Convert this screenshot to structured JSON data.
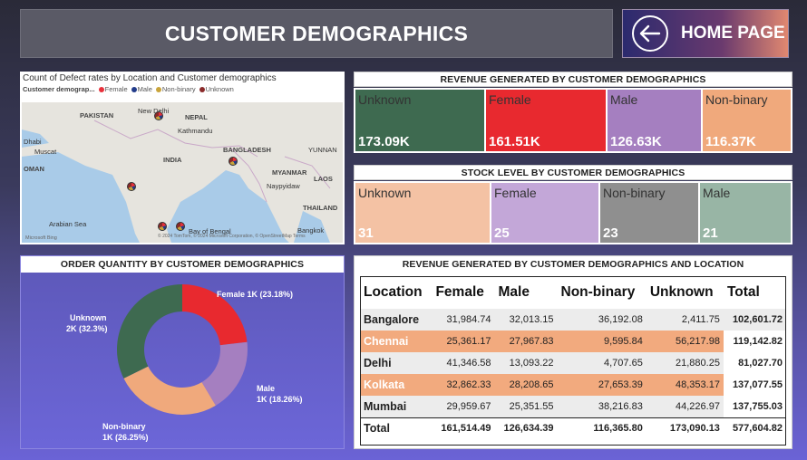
{
  "header": {
    "title": "CUSTOMER DEMOGRAPHICS",
    "home_label": "HOME PAGE"
  },
  "map": {
    "title": "Count of Defect rates by Location and Customer demographics",
    "legend_title": "Customer demograp...",
    "legend": [
      {
        "name": "Female",
        "color": "#e8303a"
      },
      {
        "name": "Male",
        "color": "#223b8a"
      },
      {
        "name": "Non-binary",
        "color": "#c9a43a"
      },
      {
        "name": "Unknown",
        "color": "#8a2a2a"
      }
    ],
    "places": {
      "pakistan": "PAKISTAN",
      "new_delhi": "New Delhi",
      "nepal": "NEPAL",
      "kathmandu": "Kathmandu",
      "dhabi": "Dhabi",
      "muscat": "Muscat",
      "oman": "OMAN",
      "india": "INDIA",
      "bangladesh": "BANGLADESH",
      "yunnan": "YUNNAN",
      "myanmar": "MYANMAR",
      "naypyidaw": "Naypyidaw",
      "laos": "LAOS",
      "thailand": "THAILAND",
      "arabian_sea": "Arabian Sea",
      "bay_of_bengal": "Bay of Bengal",
      "bangkok": "Bangkok"
    },
    "footer": "Microsoft Bing",
    "copyright": "© 2024 TomTom, © 2024 Microsoft Corporation, © OpenStreetMap Terms"
  },
  "revenue": {
    "title": "REVENUE GENERATED BY CUSTOMER DEMOGRAPHICS",
    "tiles": [
      {
        "name": "Unknown",
        "value": "173.09K",
        "color": "#3e6a50"
      },
      {
        "name": "Female",
        "value": "161.51K",
        "color": "#e8292f"
      },
      {
        "name": "Male",
        "value": "126.63K",
        "color": "#a57fc0"
      },
      {
        "name": "Non-binary",
        "value": "116.37K",
        "color": "#f0a97c"
      }
    ]
  },
  "stock": {
    "title": "STOCK LEVEL BY CUSTOMER DEMOGRAPHICS",
    "tiles": [
      {
        "name": "Unknown",
        "value": "31",
        "color": "#f4c2a4"
      },
      {
        "name": "Female",
        "value": "25",
        "color": "#c3a7d8"
      },
      {
        "name": "Non-binary",
        "value": "23",
        "color": "#8f8f8f"
      },
      {
        "name": "Male",
        "value": "21",
        "color": "#98b5a5"
      }
    ]
  },
  "order": {
    "title": "ORDER QUANTITY BY CUSTOMER DEMOGRAPHICS",
    "chart_data": {
      "type": "pie",
      "categories": [
        "Female",
        "Male",
        "Non-binary",
        "Unknown"
      ],
      "values": [
        23.18,
        18.26,
        26.25,
        32.3
      ],
      "colors": [
        "#e8292f",
        "#a57fc0",
        "#f0a97c",
        "#3e6a50"
      ],
      "labels": {
        "female": "Female 1K (23.18%)",
        "male_1": "Male",
        "male_2": "1K (18.26%)",
        "nonbinary_1": "Non-binary",
        "nonbinary_2": "1K (26.25%)",
        "unknown_1": "Unknown",
        "unknown_2": "2K (32.3%)"
      }
    }
  },
  "loc_table": {
    "title": "REVENUE GENERATED BY CUSTOMER DEMOGRAPHICS AND LOCATION",
    "headers": [
      "Location",
      "Female",
      "Male",
      "Non-binary",
      "Unknown",
      "Total"
    ],
    "rows": [
      [
        "Bangalore",
        "31,984.74",
        "32,013.15",
        "36,192.08",
        "2,411.75",
        "102,601.72"
      ],
      [
        "Chennai",
        "25,361.17",
        "27,967.83",
        "9,595.84",
        "56,217.98",
        "119,142.82"
      ],
      [
        "Delhi",
        "41,346.58",
        "13,093.22",
        "4,707.65",
        "21,880.25",
        "81,027.70"
      ],
      [
        "Kolkata",
        "32,862.33",
        "28,208.65",
        "27,653.39",
        "48,353.17",
        "137,077.55"
      ],
      [
        "Mumbai",
        "29,959.67",
        "25,351.55",
        "38,216.83",
        "44,226.97",
        "137,755.03"
      ]
    ],
    "total": [
      "Total",
      "161,514.49",
      "126,634.39",
      "116,365.80",
      "173,090.13",
      "577,604.82"
    ]
  }
}
